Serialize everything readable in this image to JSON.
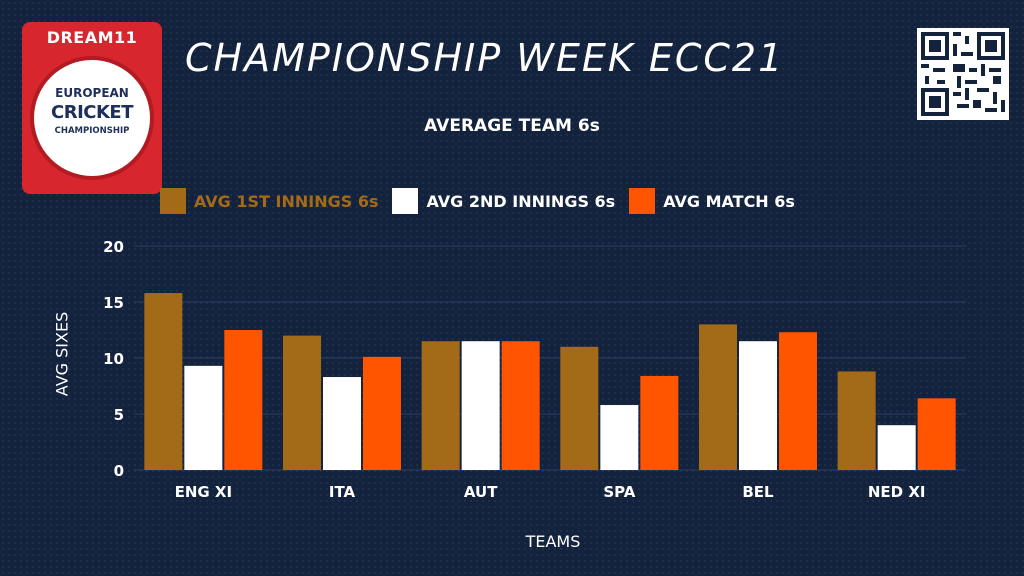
{
  "logo": {
    "brand": "DREAM11",
    "line1": "EUROPEAN",
    "line2": "CRICKET",
    "line3": "CHAMPIONSHIP"
  },
  "title": "CHAMPIONSHIP WEEK ECC21",
  "qr_icon": "qr-code-icon",
  "colors": {
    "background": "#13233d",
    "first_innings": "#a36a17",
    "second_innings": "#ffffff",
    "match": "#ff5500",
    "gridline": "#2c3f63"
  },
  "chart_data": {
    "type": "bar",
    "title": "AVERAGE TEAM 6s",
    "xlabel": "TEAMS",
    "ylabel": "AVG SIXES",
    "ylim": [
      0,
      20
    ],
    "yticks": [
      "0",
      "5",
      "10",
      "15",
      "20"
    ],
    "grid": true,
    "legend_position": "top",
    "categories": [
      "ENG XI",
      "ITA",
      "AUT",
      "SPA",
      "BEL",
      "NED XI"
    ],
    "series": [
      {
        "name": "AVG 1ST INNINGS 6s",
        "color": "#a36a17",
        "values": [
          15.8,
          12.0,
          11.5,
          11.0,
          13.0,
          8.8
        ]
      },
      {
        "name": "AVG 2ND INNINGS 6s",
        "color": "#ffffff",
        "values": [
          9.3,
          8.3,
          11.5,
          5.8,
          11.5,
          4.0
        ]
      },
      {
        "name": "AVG MATCH 6s",
        "color": "#ff5500",
        "values": [
          12.5,
          10.1,
          11.5,
          8.4,
          12.3,
          6.4
        ]
      }
    ]
  }
}
